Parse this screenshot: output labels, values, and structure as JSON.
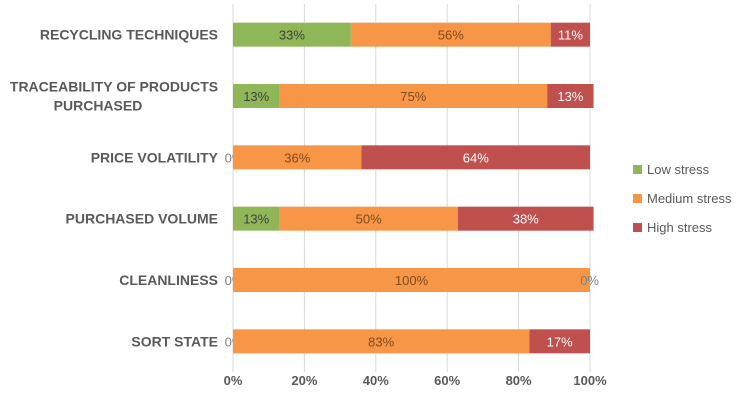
{
  "chart_data": {
    "type": "bar",
    "orientation": "horizontal",
    "stacked": "percent",
    "categories": [
      "RECYCLING TECHNIQUES",
      "TRACEABILITY OF PRODUCTS PURCHASED",
      "PRICE VOLATILITY",
      "PURCHASED VOLUME",
      "CLEANLINESS",
      "SORT STATE"
    ],
    "series": [
      {
        "name": "Low stress",
        "color": "#8fb657",
        "values": [
          33,
          13,
          0,
          13,
          0,
          0
        ],
        "labels": [
          "33%",
          "13%",
          "0%",
          "13%",
          "0%",
          "0%"
        ]
      },
      {
        "name": "Medium stress",
        "color": "#f79646",
        "values": [
          56,
          75,
          36,
          50,
          100,
          83
        ],
        "labels": [
          "56%",
          "75%",
          "36%",
          "50%",
          "100%",
          "83%"
        ]
      },
      {
        "name": "High stress",
        "color": "#c0504d",
        "values": [
          11,
          13,
          64,
          38,
          0,
          17
        ],
        "labels": [
          "11%",
          "13%",
          "64%",
          "38%",
          "0%",
          "17%"
        ]
      }
    ],
    "xlim": [
      0,
      100
    ],
    "xticks": [
      "0%",
      "20%",
      "40%",
      "60%",
      "80%",
      "100%"
    ],
    "grid": true,
    "legend_position": "right"
  }
}
